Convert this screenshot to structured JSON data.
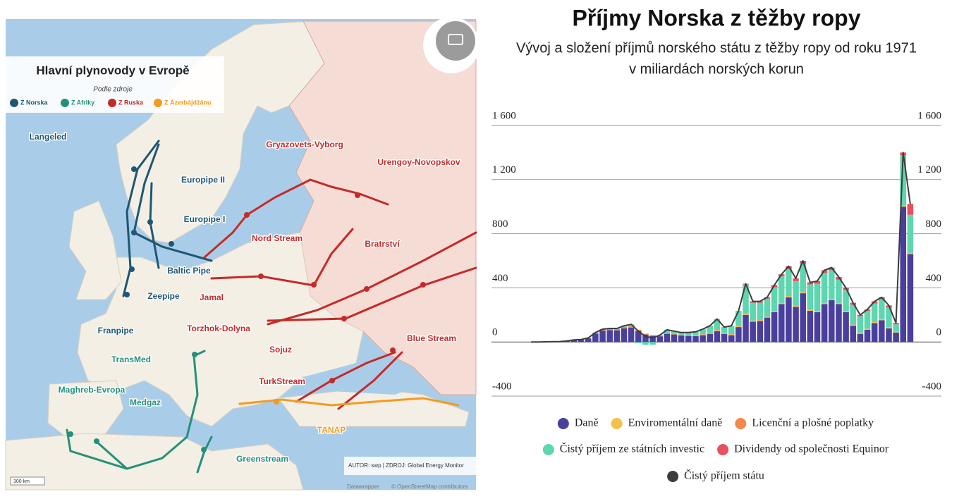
{
  "map": {
    "title": "Hlavní plynovody v Evropě",
    "subtitle": "Podle zdroje",
    "legend": [
      "Z Norska",
      "Z Afriky",
      "Z Ruska",
      "Z Ázerbájdžánu"
    ],
    "labels": [
      "Langeled",
      "Europipe II",
      "Europipe I",
      "Baltic Pipe",
      "Zeepipe",
      "Franpipe",
      "TransMed",
      "Maghreb-Evropa",
      "Medgaz",
      "Greenstream",
      "TANAP",
      "TurkStream",
      "Sojuz",
      "Blue Stream",
      "Torzhok-Dolyna",
      "Jamal",
      "Nord Stream",
      "Bratrství",
      "Gryazovets-Vyborg",
      "Urengoy-Novopskov"
    ],
    "credit": "AUTOR: swp | ZDROJ: Global Energy Monitor",
    "scale": "300 km",
    "attribution": [
      "Datawrapper",
      "© OpenStreetMap contributors"
    ]
  },
  "chart_data": {
    "type": "bar",
    "stacked": true,
    "title": "Příjmy Norska z těžby ropy",
    "subtitle": [
      "Vývoj a složení příjmů norského státu z těžby ropy od roku 1971",
      "v miliardách norských korun"
    ],
    "categories": [
      null,
      null,
      null,
      null,
      null,
      null,
      null,
      null,
      null,
      null,
      null,
      null,
      null,
      null,
      null,
      null,
      null,
      null,
      null,
      null,
      null,
      null,
      null,
      null,
      null,
      null,
      null,
      null,
      null,
      null,
      null,
      null,
      null,
      null,
      null,
      null,
      null,
      null,
      null,
      null,
      null,
      null,
      null,
      null,
      null,
      null,
      null,
      null,
      null,
      null,
      null,
      null,
      null,
      null
    ],
    "ylim": [
      -400,
      1600
    ],
    "yticks": [
      -400,
      0,
      {
        "value": 400,
        "label": "400"
      },
      800,
      {
        "value": 1200,
        "label": "1 200"
      },
      {
        "value": 1600,
        "label": "1 600"
      }
    ],
    "grid": true,
    "series": [
      {
        "name": "Daně",
        "color": "#4b3f9e",
        "values": [
          0,
          0,
          0,
          1,
          2,
          6,
          12,
          15,
          26,
          62,
          84,
          88,
          86,
          100,
          105,
          80,
          55,
          45,
          42,
          60,
          55,
          48,
          45,
          44,
          50,
          60,
          80,
          60,
          50,
          110,
          200,
          150,
          155,
          180,
          220,
          280,
          330,
          260,
          360,
          230,
          220,
          280,
          310,
          280,
          220,
          120,
          60,
          90,
          140,
          160,
          100,
          70,
          1000,
          650
        ]
      },
      {
        "name": "Enviromentální daně",
        "color": "#f2c14e",
        "values": [
          0,
          0,
          0,
          0,
          0,
          0,
          0,
          0,
          0,
          0,
          0,
          0,
          0,
          0,
          0,
          0,
          0,
          0,
          0,
          0,
          0,
          3,
          4,
          5,
          5,
          6,
          6,
          6,
          6,
          6,
          6,
          6,
          6,
          6,
          6,
          7,
          7,
          7,
          7,
          7,
          7,
          7,
          7,
          7,
          7,
          7,
          7,
          7,
          7,
          7,
          7,
          7,
          8,
          8
        ]
      },
      {
        "name": "Licenční a plošné poplatky",
        "color": "#f08a4b",
        "values": [
          0,
          0,
          1,
          1,
          1,
          2,
          3,
          3,
          4,
          6,
          8,
          9,
          10,
          12,
          12,
          10,
          6,
          5,
          5,
          5,
          4,
          3,
          3,
          3,
          3,
          3,
          3,
          2,
          2,
          2,
          2,
          2,
          2,
          2,
          2,
          2,
          2,
          2,
          2,
          2,
          2,
          2,
          2,
          2,
          2,
          2,
          2,
          2,
          2,
          2,
          2,
          2,
          2,
          2
        ]
      },
      {
        "name": "Čistý příjem ze státních investic",
        "color": "#5ed6b0",
        "values": [
          0,
          0,
          0,
          0,
          0,
          0,
          0,
          0,
          0,
          2,
          3,
          3,
          4,
          8,
          13,
          -10,
          -21,
          -20,
          3,
          25,
          21,
          16,
          18,
          23,
          37,
          51,
          81,
          42,
          62,
          112,
          217,
          132,
          127,
          132,
          177,
          196,
          201,
          181,
          211,
          186,
          201,
          221,
          211,
          171,
          156,
          146,
          121,
          131,
          136,
          146,
          146,
          51,
          370,
          280
        ]
      },
      {
        "name": "Dividendy od společnosti Equinor",
        "color": "#e8505b",
        "values": [
          0,
          0,
          0,
          0,
          0,
          0,
          0,
          0,
          0,
          0,
          0,
          0,
          0,
          0,
          0,
          0,
          0,
          0,
          0,
          0,
          0,
          0,
          0,
          0,
          0,
          0,
          0,
          0,
          0,
          0,
          5,
          10,
          10,
          10,
          15,
          15,
          20,
          20,
          20,
          15,
          20,
          20,
          20,
          20,
          15,
          15,
          10,
          10,
          15,
          15,
          15,
          10,
          20,
          80
        ]
      },
      {
        "name": "Čistý příjem státu",
        "color": "#3c3c3c",
        "type": "line",
        "values": [
          0,
          0,
          1,
          2,
          3,
          8,
          15,
          18,
          30,
          70,
          95,
          100,
          100,
          120,
          130,
          80,
          40,
          30,
          50,
          90,
          80,
          70,
          70,
          75,
          95,
          120,
          170,
          110,
          120,
          230,
          430,
          300,
          300,
          330,
          420,
          500,
          560,
          470,
          600,
          440,
          450,
          530,
          550,
          480,
          400,
          290,
          200,
          240,
          300,
          330,
          270,
          140,
          1400,
          1020
        ]
      }
    ]
  }
}
